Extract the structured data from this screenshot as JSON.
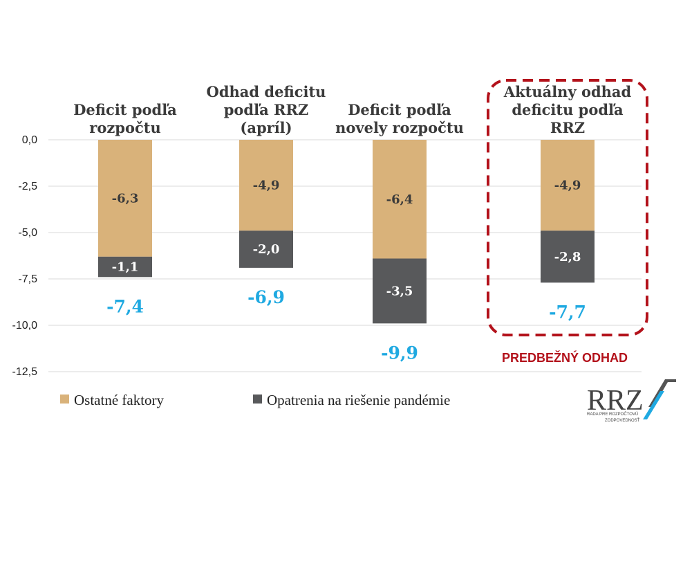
{
  "chart_data": {
    "type": "bar",
    "stacked": true,
    "categories": [
      [
        "Deficit podľa",
        "rozpočtu"
      ],
      [
        "Odhad deficitu",
        "podľa RRZ",
        "(apríl)"
      ],
      [
        "Deficit podľa",
        "novely rozpočtu"
      ],
      [
        "Aktuálny odhad",
        "deficitu podľa",
        "RRZ"
      ]
    ],
    "series": [
      {
        "name": "Ostatné faktory",
        "values": [
          -6.3,
          -4.9,
          -6.4,
          -4.9
        ],
        "labels": [
          "-6,3",
          "-4,9",
          "-6,4",
          "-4,9"
        ],
        "color": "#d9b27a"
      },
      {
        "name": "Opatrenia na riešenie pandémie",
        "values": [
          -1.1,
          -2.0,
          -3.5,
          -2.8
        ],
        "labels": [
          "-1,1",
          "-2,0",
          "-3,5",
          "-2,8"
        ],
        "color": "#58595b"
      }
    ],
    "totals": [
      -7.4,
      -6.9,
      -9.9,
      -7.7
    ],
    "total_labels": [
      "-7,4",
      "-6,9",
      "-9,9",
      "-7,7"
    ],
    "ylim": [
      -12.5,
      0
    ],
    "yticks": [
      0,
      -2.5,
      -5,
      -7.5,
      -10,
      -12.5
    ],
    "ytick_labels": [
      "0,0",
      "-2,5",
      "-5,0",
      "-7,5",
      "-10,0",
      "-12,5"
    ],
    "grid": true,
    "legend_position": "bottom-left",
    "highlight_category": 3,
    "highlight_note": "PREDBEŽNÝ ODHAD",
    "highlight_color": "#b3121b",
    "total_color": "#1fa9e1"
  },
  "logo": {
    "text": "RRZ",
    "subtitle_lines": [
      "RADA PRE ROZPOČTOVÚ",
      "ZODPOVEDNOSŤ"
    ]
  }
}
